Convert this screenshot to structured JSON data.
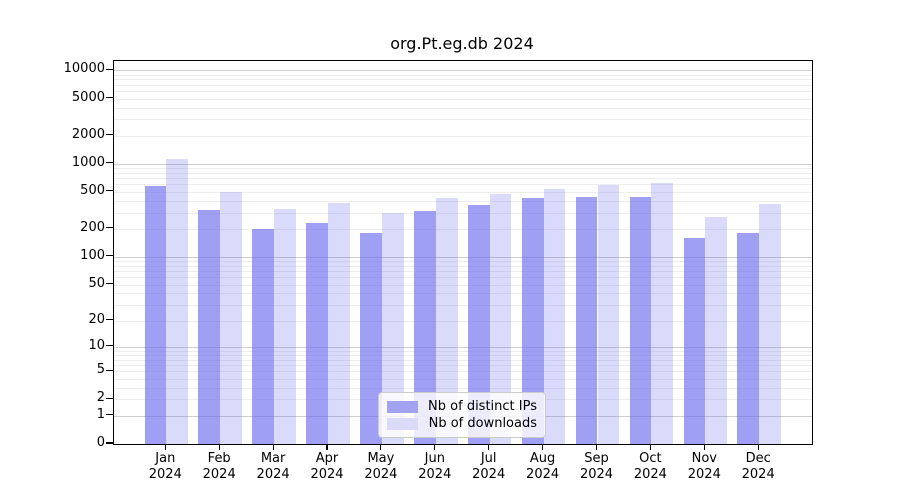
{
  "title": "org.Pt.eg.db 2024",
  "legend": {
    "entries": [
      {
        "label": "Nb of distinct IPs",
        "swatch_color": "#a2a2f0"
      },
      {
        "label": "Nb of downloads",
        "swatch_color": "#dadaf9"
      }
    ]
  },
  "chart_data": {
    "type": "bar",
    "title": "org.Pt.eg.db 2024",
    "categories": [
      "Jan",
      "Feb",
      "Mar",
      "Apr",
      "May",
      "Jun",
      "Jul",
      "Aug",
      "Sep",
      "Oct",
      "Nov",
      "Dec"
    ],
    "category_year": "2024",
    "series": [
      {
        "name": "Nb of distinct IPs",
        "color": "#a2a2f0",
        "values": [
          582,
          322,
          200,
          230,
          180,
          315,
          365,
          425,
          440,
          440,
          160,
          180
        ]
      },
      {
        "name": "Nb of downloads",
        "color": "#dadaf9",
        "values": [
          1130,
          500,
          328,
          382,
          298,
          428,
          475,
          537,
          590,
          620,
          270,
          368
        ]
      }
    ],
    "xlabel": "",
    "ylabel": "",
    "y_scale": "log1p",
    "y_ticks": [
      10000,
      5000,
      2000,
      1000,
      500,
      200,
      100,
      50,
      20,
      10,
      5,
      2,
      1,
      0
    ],
    "ylim": [
      0,
      12600
    ],
    "grid": true,
    "legend_position": "bottom-center"
  }
}
